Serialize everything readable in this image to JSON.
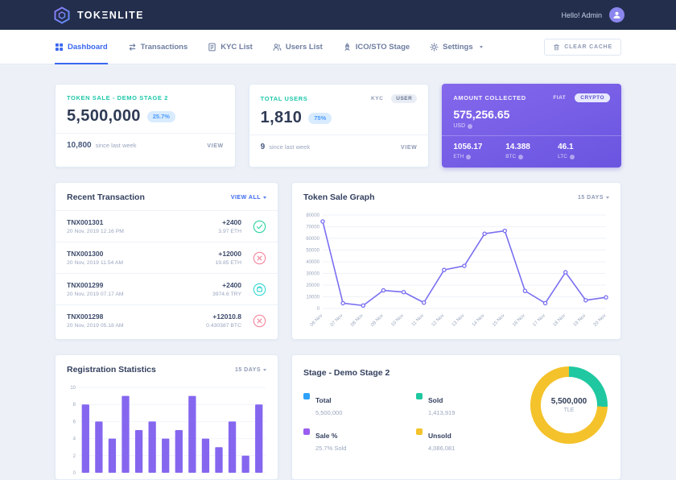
{
  "topbar": {
    "brand": "TOKΞNLITE",
    "greeting": "Hello! Admin"
  },
  "nav": {
    "items": [
      {
        "label": "Dashboard"
      },
      {
        "label": "Transactions"
      },
      {
        "label": "KYC List"
      },
      {
        "label": "Users List"
      },
      {
        "label": "ICO/STO Stage"
      },
      {
        "label": "Settings"
      }
    ],
    "clear_cache_label": "CLEAR CACHE"
  },
  "stats": {
    "token_sale": {
      "title": "TOKEN SALE - DEMO STAGE 2",
      "value": "5,500,000",
      "badge": "25.7%",
      "delta": "10,800",
      "delta_label": "since last week",
      "view_label": "VIEW"
    },
    "total_users": {
      "title": "TOTAL USERS",
      "tab_kyc": "KYC",
      "tab_user": "USER",
      "value": "1,810",
      "badge": "75%",
      "delta": "9",
      "delta_label": "since last week",
      "view_label": "VIEW"
    },
    "amount_collected": {
      "title": "AMOUNT COLLECTED",
      "tab_fiat": "FIAT",
      "tab_crypto": "CRYPTO",
      "value": "575,256.65",
      "currency": "USD",
      "breakdown": [
        {
          "value": "1056.17",
          "unit": "ETH"
        },
        {
          "value": "14.388",
          "unit": "BTC"
        },
        {
          "value": "46.1",
          "unit": "LTC"
        }
      ]
    }
  },
  "transactions": {
    "title": "Recent Transaction",
    "view_all_label": "VIEW ALL",
    "rows": [
      {
        "id": "TNX001301",
        "date": "20 Nov, 2019 12.16 PM",
        "amount": "+2400",
        "sub": "3.97 ETH",
        "status": "success"
      },
      {
        "id": "TNX001300",
        "date": "20 Nov, 2019 11.54 AM",
        "amount": "+12000",
        "sub": "19.85 ETH",
        "status": "canceled"
      },
      {
        "id": "TNX001299",
        "date": "20 Nov, 2019 07.17 AM",
        "amount": "+2400",
        "sub": "3974.6 TRY",
        "status": "pending"
      },
      {
        "id": "TNX001298",
        "date": "20 Nov, 2019 05.18 AM",
        "amount": "+12010.8",
        "sub": "0.430387 BTC",
        "status": "canceled"
      }
    ]
  },
  "token_graph": {
    "title": "Token Sale Graph",
    "range_label": "15 DAYS"
  },
  "registration": {
    "title": "Registration Statistics",
    "range_label": "15 DAYS"
  },
  "stage": {
    "title": "Stage - Demo Stage 2",
    "legend": [
      {
        "label": "Total",
        "value": "5,500,000",
        "color": "#2ea2f8"
      },
      {
        "label": "Sold",
        "value": "1,413,919",
        "color": "#1fc8a0"
      },
      {
        "label": "Sale %",
        "value": "25.7% Sold",
        "color": "#9b5cf0"
      },
      {
        "label": "Unsold",
        "value": "4,086,081",
        "color": "#f4c22a"
      }
    ],
    "donut_center": "5,500,000",
    "donut_unit": "TLE"
  },
  "chart_data": [
    {
      "type": "line",
      "title": "Token Sale Graph",
      "x": [
        "06 Nov",
        "07 Nov",
        "08 Nov",
        "09 Nov",
        "10 Nov",
        "11 Nov",
        "12 Nov",
        "13 Nov",
        "14 Nov",
        "15 Nov",
        "16 Nov",
        "17 Nov",
        "18 Nov",
        "19 Nov",
        "20 Nov"
      ],
      "values": [
        74500,
        4500,
        2500,
        15500,
        14000,
        5000,
        33000,
        36500,
        64000,
        66500,
        15000,
        4500,
        31000,
        7000,
        9500
      ],
      "ylim": [
        0,
        80000
      ],
      "yticks": [
        0,
        10000,
        20000,
        30000,
        40000,
        50000,
        60000,
        70000,
        80000
      ],
      "line_color": "#7a6ff0",
      "grid": true,
      "legend_position": "none"
    },
    {
      "type": "bar",
      "title": "Registration Statistics",
      "values": [
        8,
        6,
        4,
        9,
        5,
        6,
        4,
        5,
        9,
        4,
        3,
        6,
        2,
        8
      ],
      "ylim": [
        0,
        10
      ],
      "yticks": [
        0,
        2,
        4,
        6,
        8,
        10
      ],
      "bar_color": "#8566ef",
      "grid": true
    },
    {
      "type": "pie",
      "title": "Stage - Demo Stage 2",
      "donut": true,
      "segments": [
        {
          "label": "Sold",
          "value": 25.7,
          "color": "#1fc8a0"
        },
        {
          "label": "Unsold",
          "value": 74.3,
          "color": "#f4c22a"
        }
      ],
      "center_label": "5,500,000",
      "center_unit": "TLE"
    }
  ]
}
